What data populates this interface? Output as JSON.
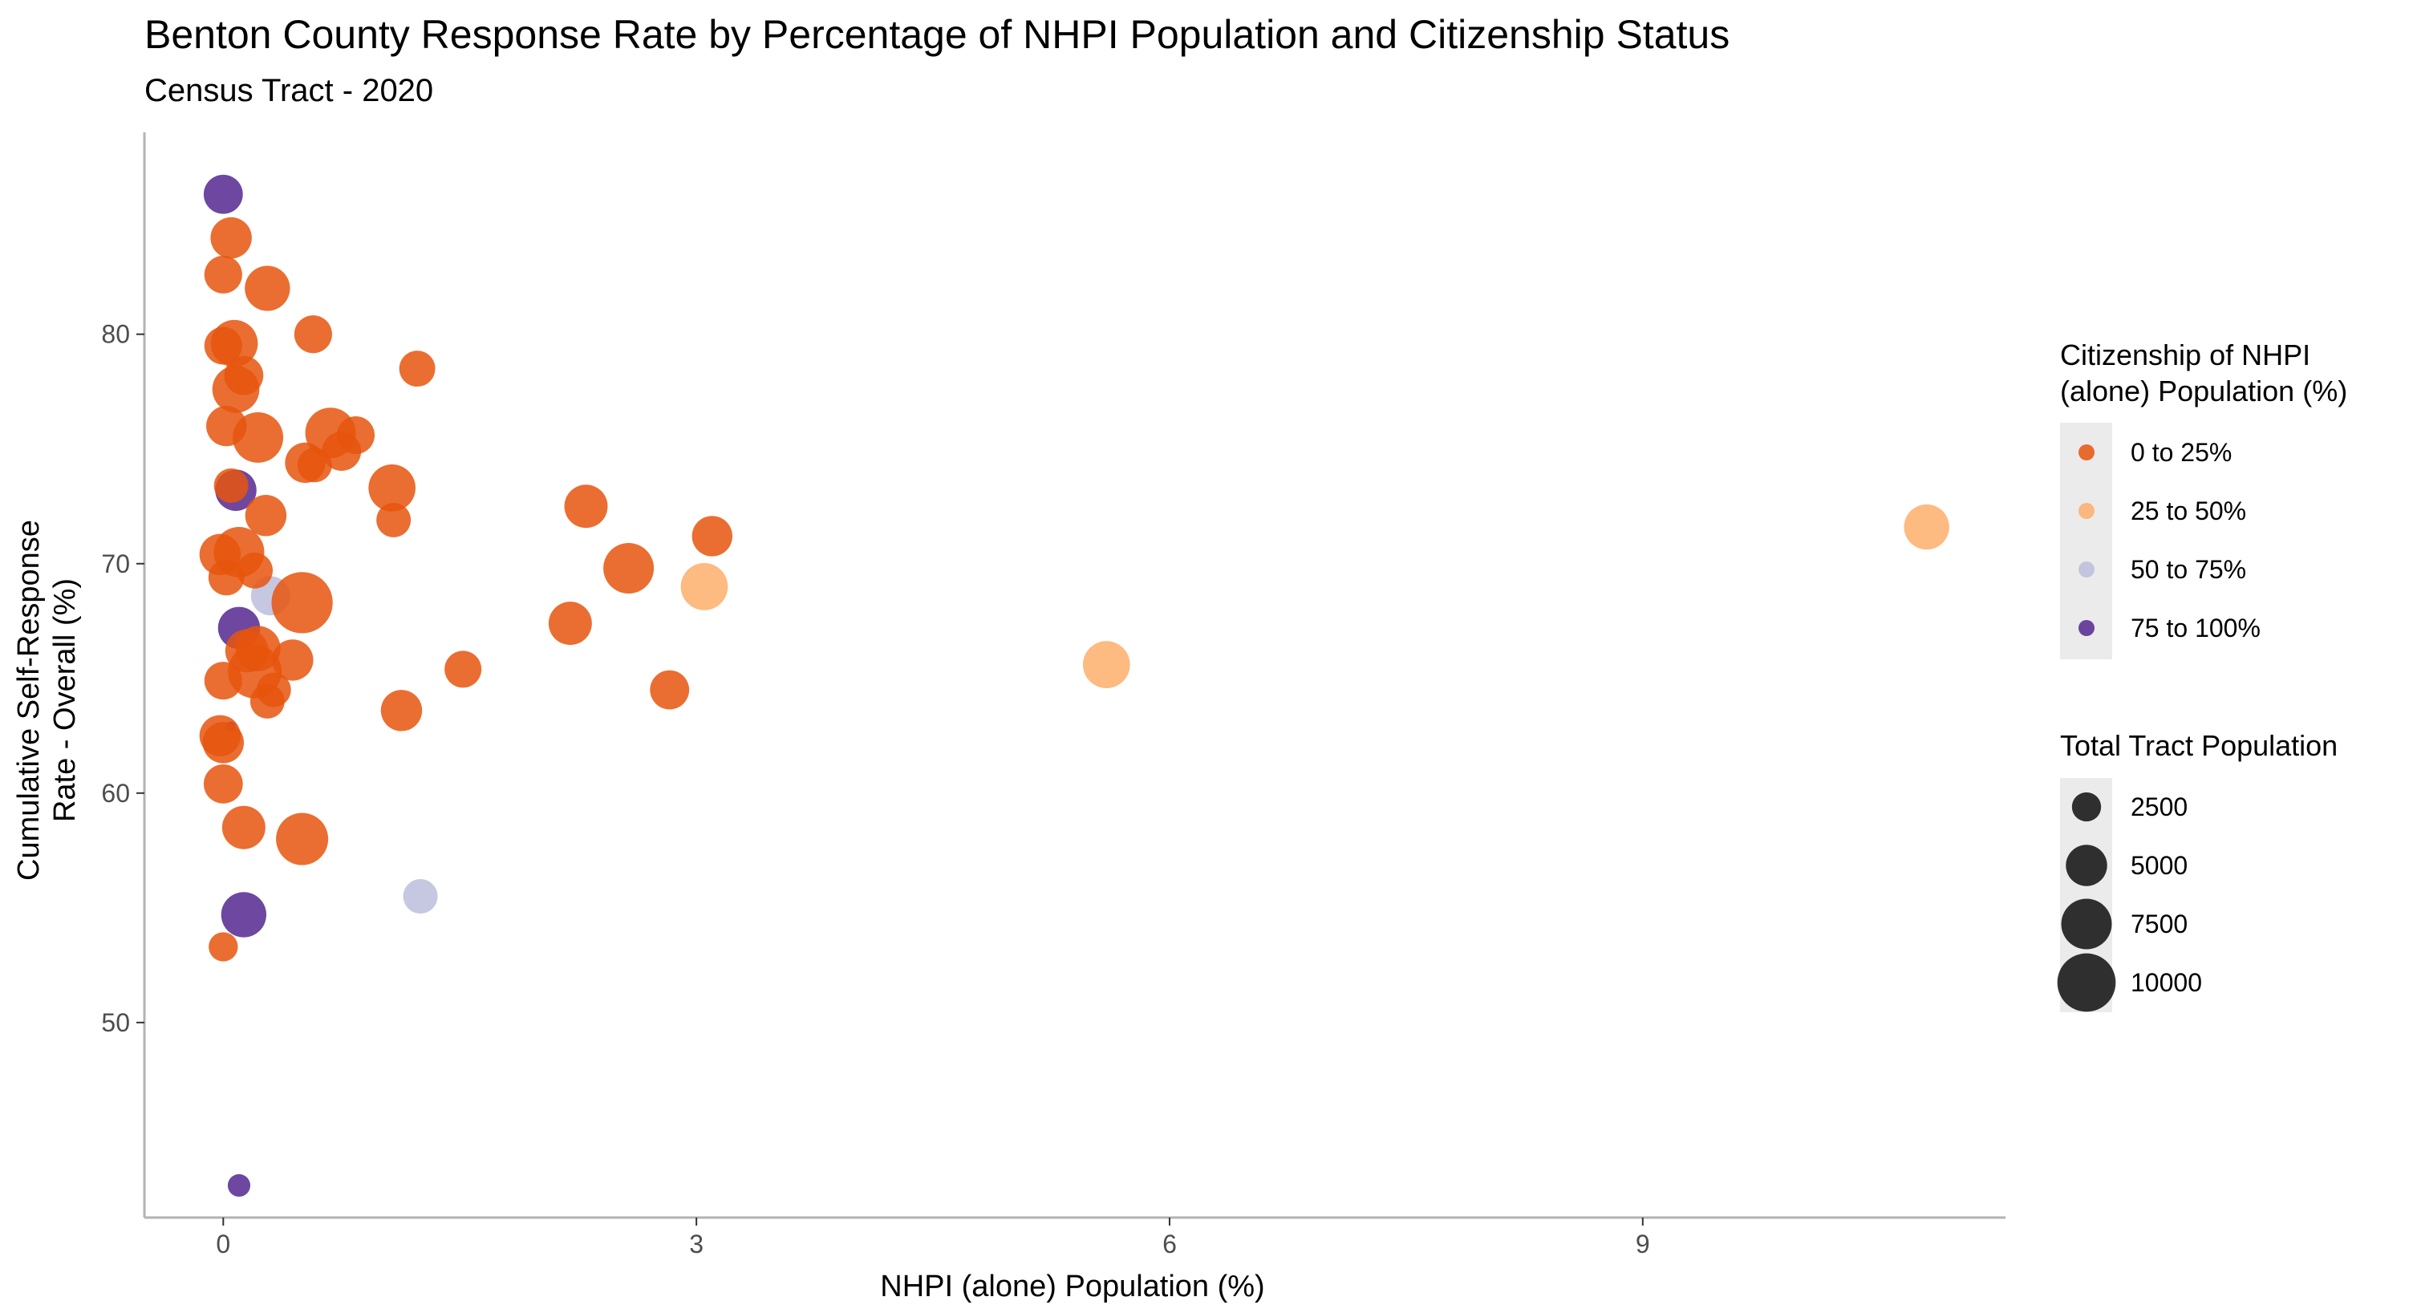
{
  "chart_data": {
    "type": "scatter",
    "title": "Benton County Response Rate by Percentage of NHPI Population and Citizenship Status",
    "subtitle": "Census Tract - 2020",
    "xlabel": "NHPI (alone) Population (%)",
    "ylabel": [
      "Cumulative Self-Response",
      "Rate - Overall (%)"
    ],
    "xlim": [
      -0.5,
      11.3
    ],
    "ylim": [
      41.5,
      88.8
    ],
    "x_ticks": [
      0,
      3,
      6,
      9
    ],
    "y_ticks": [
      50,
      60,
      70,
      80
    ],
    "grid": false,
    "legend_placement": "right",
    "color_legend": {
      "title": [
        "Citizenship of NHPI",
        "(alone) Population (%)"
      ],
      "entries": [
        {
          "label": "0 to 25%",
          "color": "#e6550d"
        },
        {
          "label": "25 to 50%",
          "color": "#fdae6b"
        },
        {
          "label": "50 to 75%",
          "color": "#bcbddc"
        },
        {
          "label": "75 to 100%",
          "color": "#54278f"
        }
      ]
    },
    "size_legend": {
      "title": "Total Tract Population",
      "entries": [
        {
          "label": "2500",
          "value": 2500
        },
        {
          "label": "5000",
          "value": 5000
        },
        {
          "label": "7500",
          "value": 7500
        },
        {
          "label": "10000",
          "value": 10000
        }
      ]
    },
    "series": [
      {
        "name": "75 to 100%",
        "points": [
          {
            "x": 0.0,
            "y": 86.1,
            "pop": 4500
          },
          {
            "x": 0.08,
            "y": 73.2,
            "pop": 5000
          },
          {
            "x": 0.1,
            "y": 67.2,
            "pop": 5200
          },
          {
            "x": 0.05,
            "y": 62.9,
            "pop": 300
          },
          {
            "x": 0.13,
            "y": 54.7,
            "pop": 6000
          },
          {
            "x": 0.1,
            "y": 42.9,
            "pop": 1500
          }
        ]
      },
      {
        "name": "50 to 75%",
        "points": [
          {
            "x": 0.3,
            "y": 68.6,
            "pop": 4500
          },
          {
            "x": 1.25,
            "y": 55.5,
            "pop": 3500
          }
        ]
      },
      {
        "name": "25 to 50%",
        "points": [
          {
            "x": 10.8,
            "y": 71.6,
            "pop": 6000
          },
          {
            "x": 3.05,
            "y": 69.0,
            "pop": 6500
          },
          {
            "x": 5.6,
            "y": 65.6,
            "pop": 6500
          }
        ]
      },
      {
        "name": "0 to 25%",
        "points": [
          {
            "x": 0.05,
            "y": 84.2,
            "pop": 5000
          },
          {
            "x": 0.0,
            "y": 82.6,
            "pop": 4200
          },
          {
            "x": 0.28,
            "y": 82.0,
            "pop": 6000
          },
          {
            "x": 0.57,
            "y": 80.0,
            "pop": 4200
          },
          {
            "x": 0.07,
            "y": 79.6,
            "pop": 6500
          },
          {
            "x": 0.0,
            "y": 79.5,
            "pop": 4200
          },
          {
            "x": 1.23,
            "y": 78.5,
            "pop": 3800
          },
          {
            "x": 0.13,
            "y": 78.2,
            "pop": 4500
          },
          {
            "x": 0.08,
            "y": 77.6,
            "pop": 6500
          },
          {
            "x": 0.02,
            "y": 76.0,
            "pop": 4800
          },
          {
            "x": 0.68,
            "y": 75.7,
            "pop": 7500
          },
          {
            "x": 0.22,
            "y": 75.5,
            "pop": 7500
          },
          {
            "x": 0.84,
            "y": 75.6,
            "pop": 4200
          },
          {
            "x": 0.75,
            "y": 74.9,
            "pop": 4500
          },
          {
            "x": 0.52,
            "y": 74.4,
            "pop": 4800
          },
          {
            "x": 0.58,
            "y": 74.3,
            "pop": 3500
          },
          {
            "x": 0.05,
            "y": 73.4,
            "pop": 3500
          },
          {
            "x": 1.07,
            "y": 73.3,
            "pop": 6500
          },
          {
            "x": 2.3,
            "y": 72.5,
            "pop": 5500
          },
          {
            "x": 0.27,
            "y": 72.1,
            "pop": 5000
          },
          {
            "x": 1.08,
            "y": 71.9,
            "pop": 3500
          },
          {
            "x": 3.1,
            "y": 71.2,
            "pop": 4800
          },
          {
            "x": 0.1,
            "y": 70.5,
            "pop": 7500
          },
          {
            "x": -0.02,
            "y": 70.4,
            "pop": 5000
          },
          {
            "x": 0.2,
            "y": 69.7,
            "pop": 3800
          },
          {
            "x": 2.57,
            "y": 69.8,
            "pop": 7500
          },
          {
            "x": 0.02,
            "y": 69.4,
            "pop": 3800
          },
          {
            "x": 0.5,
            "y": 68.3,
            "pop": 11000
          },
          {
            "x": 2.2,
            "y": 67.4,
            "pop": 5500
          },
          {
            "x": 0.15,
            "y": 66.2,
            "pop": 5500
          },
          {
            "x": 0.22,
            "y": 66.3,
            "pop": 6000
          },
          {
            "x": 0.44,
            "y": 65.8,
            "pop": 5000
          },
          {
            "x": 0.2,
            "y": 65.3,
            "pop": 8500
          },
          {
            "x": 1.52,
            "y": 65.4,
            "pop": 4000
          },
          {
            "x": 0.0,
            "y": 64.9,
            "pop": 4200
          },
          {
            "x": 2.83,
            "y": 64.5,
            "pop": 4500
          },
          {
            "x": 0.32,
            "y": 64.5,
            "pop": 3500
          },
          {
            "x": 0.28,
            "y": 64.0,
            "pop": 3500
          },
          {
            "x": 1.13,
            "y": 63.6,
            "pop": 5000
          },
          {
            "x": -0.02,
            "y": 62.5,
            "pop": 5000
          },
          {
            "x": 0.0,
            "y": 62.2,
            "pop": 5000
          },
          {
            "x": 0.0,
            "y": 60.4,
            "pop": 4500
          },
          {
            "x": 0.13,
            "y": 58.5,
            "pop": 5500
          },
          {
            "x": 0.5,
            "y": 58.0,
            "pop": 8000
          },
          {
            "x": 0.0,
            "y": 53.3,
            "pop": 2500
          }
        ]
      }
    ]
  }
}
